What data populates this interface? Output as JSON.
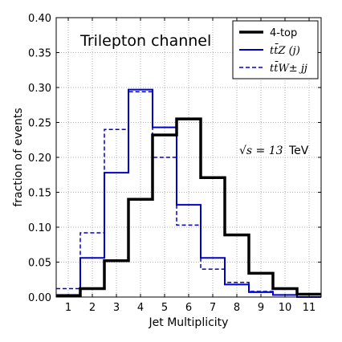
{
  "chart_data": {
    "type": "step-histogram",
    "title": "",
    "annotation": "Trilepton channel",
    "energy_annotation": {
      "lhs": "√s = 13",
      "unit": "TeV"
    },
    "xlabel": "Jet Multiplicity",
    "ylabel": "fraction of events",
    "xlim": [
      0.5,
      11.5
    ],
    "ylim": [
      0,
      0.4
    ],
    "xticks": [
      "1",
      "2",
      "3",
      "4",
      "5",
      "6",
      "7",
      "8",
      "9",
      "10",
      "11"
    ],
    "yticks": [
      "0.00",
      "0.05",
      "0.10",
      "0.15",
      "0.20",
      "0.25",
      "0.30",
      "0.35",
      "0.40"
    ],
    "grid": true,
    "legend_position": "top-right",
    "x": [
      1,
      2,
      3,
      4,
      5,
      6,
      7,
      8,
      9,
      10,
      11
    ],
    "series": [
      {
        "name": "4-top",
        "color": "#000000",
        "linestyle": "solid",
        "values": [
          0.002,
          0.012,
          0.052,
          0.14,
          0.232,
          0.255,
          0.171,
          0.089,
          0.034,
          0.012,
          0.004
        ]
      },
      {
        "name": "tt̄Z (j)",
        "color": "#0000cc",
        "linestyle": "solid",
        "values": [
          0.003,
          0.056,
          0.178,
          0.297,
          0.243,
          0.132,
          0.056,
          0.018,
          0.007,
          0.003,
          0.0
        ]
      },
      {
        "name": "tt̄W± jj",
        "color": "#0000cc",
        "linestyle": "dashed",
        "values": [
          0.012,
          0.092,
          0.24,
          0.294,
          0.2,
          0.103,
          0.04,
          0.021,
          0.008,
          0.003,
          0.0
        ]
      }
    ]
  }
}
